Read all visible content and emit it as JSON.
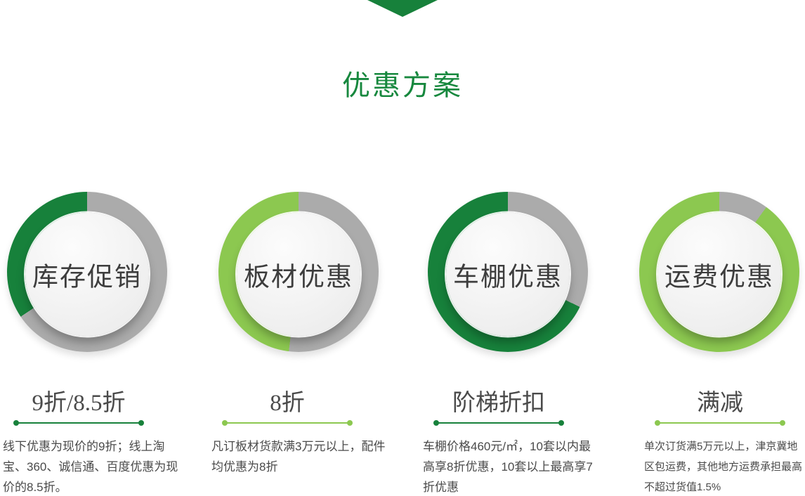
{
  "theme": {
    "dark_green": "#17813B",
    "light_green": "#8CC850",
    "title_green": "#17883E",
    "ring_gray": "#ABABAB",
    "badge_text": "#3D3D3D",
    "body_text": "#4A4A4A"
  },
  "header": {
    "title": "优惠方案"
  },
  "plans": [
    {
      "badge": "库存促销",
      "ring": {
        "color": "#17813B",
        "gray_color": "#ABABAB",
        "gray_until_deg": 236
      },
      "divider_color": "#17813B",
      "title": "9折/8.5折",
      "description": "线下优惠为现价的9折；线上淘宝、360、诚信通、百度优惠为现价的8.5折。"
    },
    {
      "badge": "板材优惠",
      "ring": {
        "color": "#8CC850",
        "gray_color": "#ABABAB",
        "gray_until_deg": 187
      },
      "divider_color": "#8CC850",
      "title": "8折",
      "description": "凡订板材货款满3万元以上，配件均优惠为8折"
    },
    {
      "badge": "车棚优惠",
      "ring": {
        "color": "#17813B",
        "gray_color": "#ABABAB",
        "gray_until_deg": 116
      },
      "divider_color": "#17813B",
      "title": "阶梯折扣",
      "description": "车棚价格460元/㎡，10套以内最高享8折优惠，10套以上最高享7折优惠"
    },
    {
      "badge": "运费优惠",
      "ring": {
        "color": "#8CC850",
        "gray_color": "#ABABAB",
        "gray_until_deg": 36
      },
      "divider_color": "#8CC850",
      "title": "满减",
      "description": "单次订货满5万元以上，津京冀地区包运费，其他地方运费承担最高不超过货值1.5%"
    }
  ]
}
